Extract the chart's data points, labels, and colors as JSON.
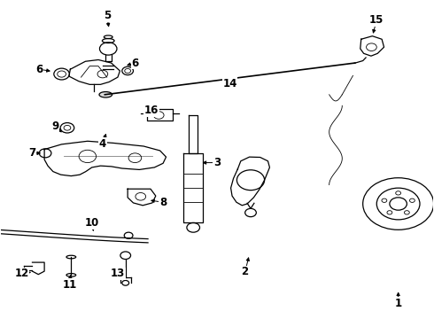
{
  "background_color": "#ffffff",
  "line_color": "#000000",
  "label_fontsize": 8.5,
  "label_fontweight": "bold",
  "callouts": [
    [
      1,
      0.92,
      0.955,
      0.92,
      0.91
    ],
    [
      2,
      0.565,
      0.855,
      0.575,
      0.8
    ],
    [
      3,
      0.5,
      0.51,
      0.46,
      0.51
    ],
    [
      4,
      0.235,
      0.45,
      0.245,
      0.41
    ],
    [
      5,
      0.245,
      0.045,
      0.25,
      0.09
    ],
    [
      6,
      0.088,
      0.215,
      0.12,
      0.222
    ],
    [
      6,
      0.31,
      0.195,
      0.285,
      0.205
    ],
    [
      7,
      0.072,
      0.48,
      0.098,
      0.48
    ],
    [
      8,
      0.375,
      0.635,
      0.34,
      0.628
    ],
    [
      9,
      0.125,
      0.395,
      0.145,
      0.42
    ],
    [
      10,
      0.21,
      0.7,
      0.215,
      0.735
    ],
    [
      11,
      0.158,
      0.895,
      0.162,
      0.855
    ],
    [
      12,
      0.048,
      0.86,
      0.075,
      0.855
    ],
    [
      13,
      0.27,
      0.86,
      0.288,
      0.848
    ],
    [
      14,
      0.53,
      0.26,
      0.51,
      0.28
    ],
    [
      15,
      0.87,
      0.06,
      0.86,
      0.11
    ],
    [
      16,
      0.348,
      0.345,
      0.36,
      0.365
    ]
  ]
}
